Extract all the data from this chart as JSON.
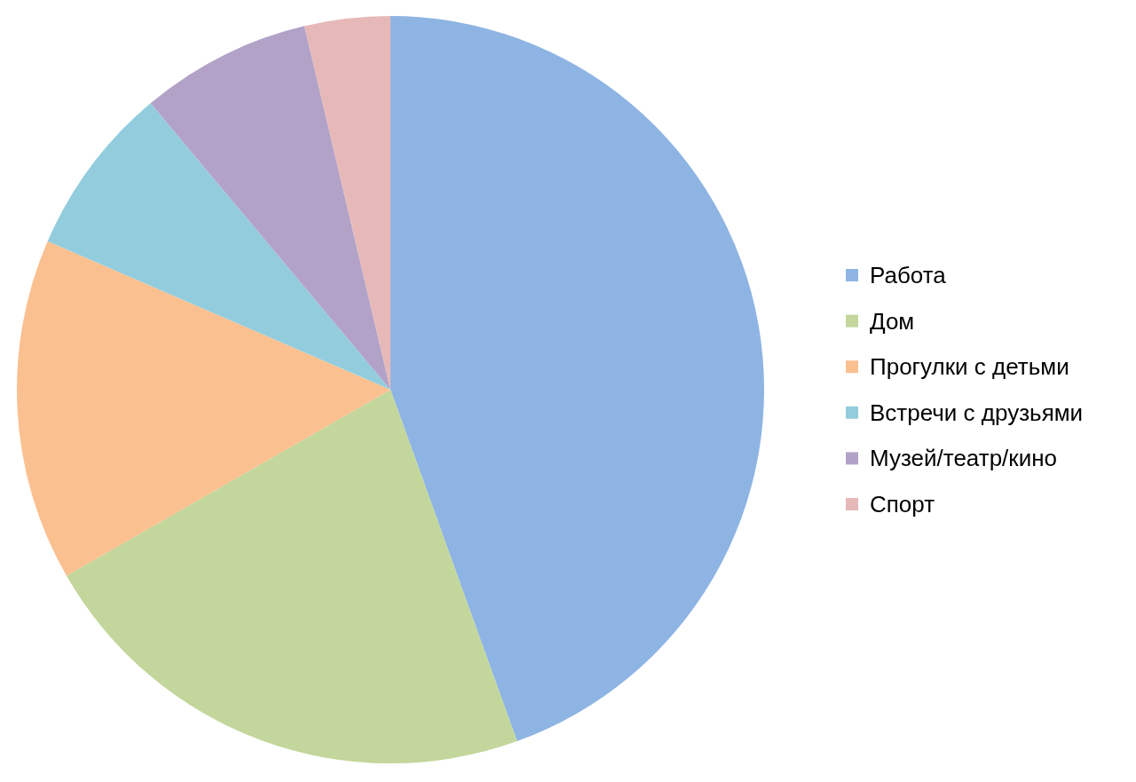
{
  "chart_data": {
    "type": "pie",
    "categories": [
      "Работа",
      "Дом",
      "Прогулки с детьми",
      "Встречи с друзьями",
      "Музей/театр/кино",
      "Спорт"
    ],
    "values": [
      44.5,
      22.2,
      14.8,
      7.4,
      7.4,
      3.7
    ],
    "colors": [
      "#8eb4e3",
      "#c3d69b",
      "#fac090",
      "#93cddd",
      "#b3a2c7",
      "#e6b9b8"
    ],
    "legend": "right"
  }
}
